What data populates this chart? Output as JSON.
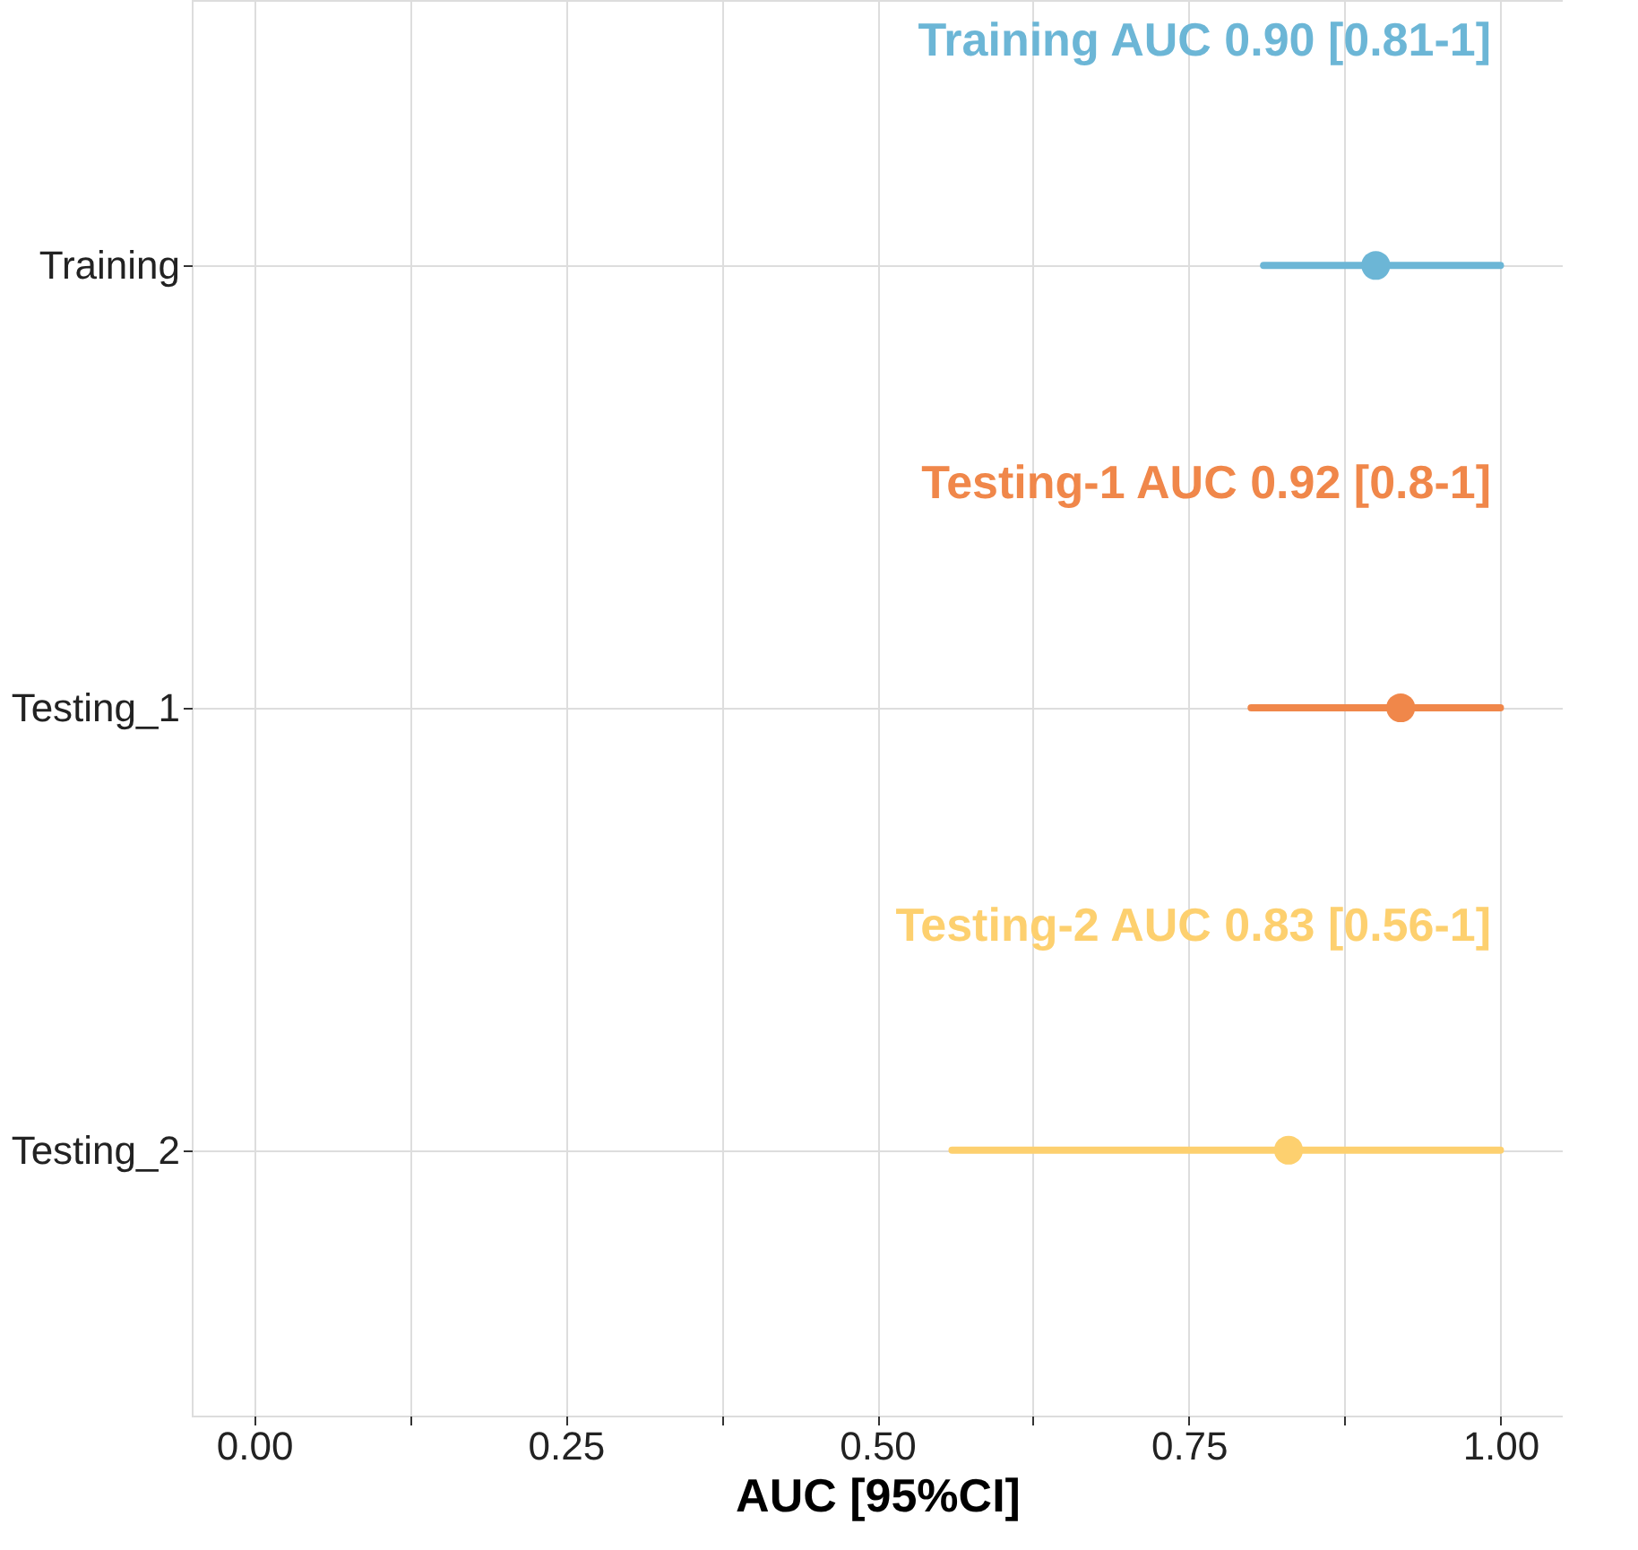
{
  "chart_data": {
    "type": "scatter",
    "orientation": "horizontal",
    "xlabel": "AUC [95%CI]",
    "categories": [
      "Training",
      "Testing_1",
      "Testing_2"
    ],
    "values": [
      0.9,
      0.92,
      0.83
    ],
    "errors": [
      [
        0.81,
        1.0
      ],
      [
        0.8,
        1.0
      ],
      [
        0.56,
        1.0
      ]
    ],
    "colors": [
      "#6cb6d6",
      "#f0874a",
      "#fdd06f"
    ],
    "annotations": [
      "Training AUC 0.90  [0.81-1]",
      "Testing-1 AUC 0.92  [0.8-1]",
      "Testing-2 AUC 0.83  [0.56-1]"
    ],
    "xlim": [
      -0.05,
      1.05
    ],
    "xticks": [
      {
        "value": 0,
        "label": "0.00"
      },
      {
        "value": 0.125,
        "label": null
      },
      {
        "value": 0.25,
        "label": "0.25"
      },
      {
        "value": 0.375,
        "label": null
      },
      {
        "value": 0.5,
        "label": "0.50"
      },
      {
        "value": 0.625,
        "label": null
      },
      {
        "value": 0.75,
        "label": "0.75"
      },
      {
        "value": 0.875,
        "label": null
      },
      {
        "value": 1,
        "label": "1.00"
      }
    ],
    "grid": true,
    "legend": false,
    "marker": "circle"
  }
}
